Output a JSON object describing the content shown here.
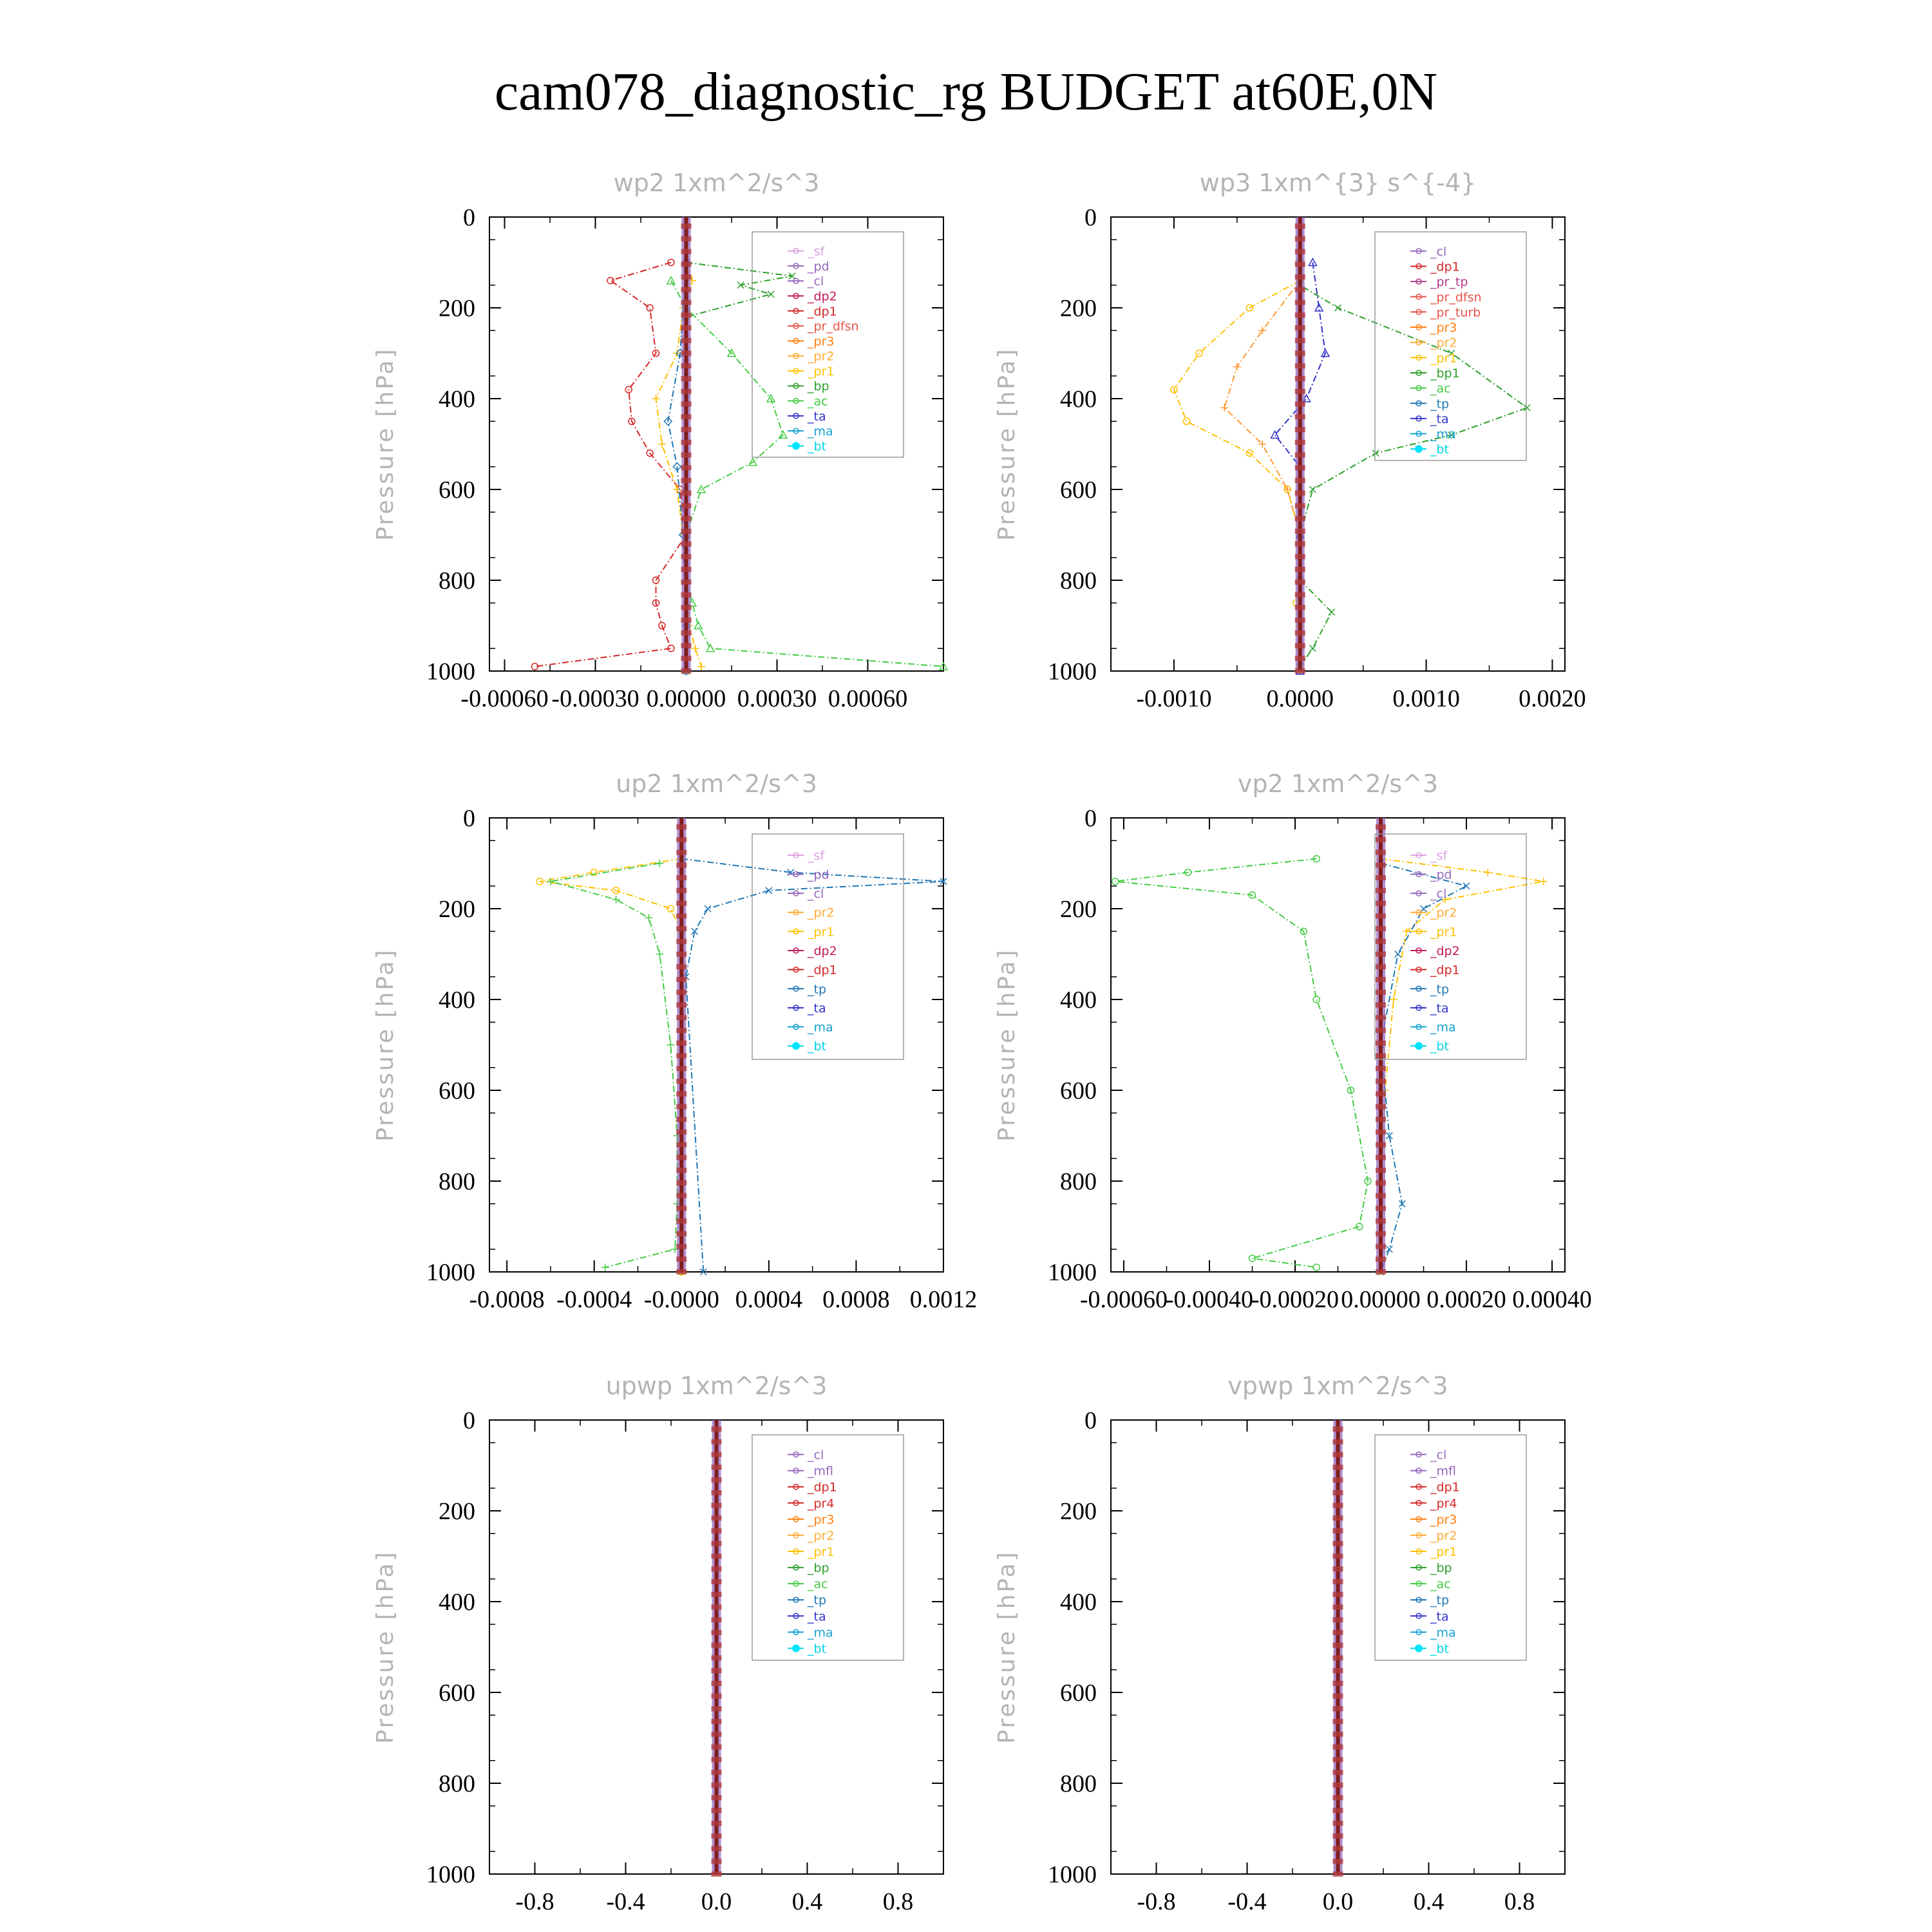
{
  "title": "cam078_diagnostic_rg  BUDGET at60E,0N",
  "chart_data": [
    {
      "type": "line",
      "title": "wp2   1xm^2/s^3",
      "ylabel": "Pressure  [hPa]",
      "ylim": [
        1000,
        0
      ],
      "xlim": [
        -0.00065,
        0.00085
      ],
      "xticks": [
        -0.0006,
        -0.0003,
        0.0,
        0.0003,
        0.0006
      ],
      "xtick_labels": [
        "-0.00060",
        "-0.00030",
        "0.00000",
        "0.00030",
        "0.00060"
      ],
      "yticks": [
        0,
        200,
        400,
        600,
        800,
        1000
      ],
      "ytick_labels": [
        "0",
        "200",
        "400",
        "600",
        "800",
        "1000"
      ],
      "legend": [
        "_sf",
        "_pd",
        "_cl",
        "_dp2",
        "_dp1",
        "_pr_dfsn",
        "_pr3",
        "_pr2",
        "_pr1",
        "_bp",
        "_ac",
        "_ta",
        "_ma",
        "_bt"
      ],
      "series": [
        {
          "name": "_dp1",
          "color": "#d62728",
          "y": [
            100,
            140,
            200,
            300,
            380,
            450,
            520,
            600,
            700,
            800,
            850,
            900,
            950,
            990
          ],
          "x": [
            -5e-05,
            -0.00025,
            -0.00012,
            -0.0001,
            -0.00019,
            -0.00018,
            -0.00012,
            -2e-05,
            0.0,
            -0.0001,
            -0.0001,
            -8e-05,
            -5e-05,
            -0.0005
          ]
        },
        {
          "name": "_pr1",
          "color": "#ffc000",
          "y": [
            100,
            140,
            200,
            300,
            400,
            500,
            600,
            700,
            800,
            900,
            950,
            990
          ],
          "x": [
            0.0,
            2e-05,
            -1e-05,
            -3e-05,
            -0.0001,
            -8e-05,
            -3e-05,
            -1e-05,
            0.0,
            1e-05,
            3e-05,
            5e-05
          ]
        },
        {
          "name": "_bp",
          "color": "#2ca02c",
          "y": [
            100,
            130,
            150,
            170,
            220,
            400,
            1000
          ],
          "x": [
            0.0,
            0.00035,
            0.00018,
            0.00028,
            0.0,
            0.0,
            0.0
          ]
        },
        {
          "name": "_ac",
          "color": "#44cc44",
          "y": [
            140,
            200,
            300,
            400,
            480,
            540,
            600,
            700,
            800,
            850,
            900,
            950,
            990
          ],
          "x": [
            -5e-05,
            0.0,
            0.00015,
            0.00028,
            0.00032,
            0.00022,
            5e-05,
            0.0,
            0.0,
            2e-05,
            4e-05,
            8e-05,
            0.00085
          ]
        },
        {
          "name": "_ma",
          "color": "#1f77b4",
          "y": [
            100,
            300,
            450,
            550,
            700,
            900,
            1000
          ],
          "x": [
            0.0,
            -2e-05,
            -6e-05,
            -3e-05,
            -1e-05,
            0.0,
            0.0
          ]
        },
        {
          "name": "_bt",
          "color": "#7f1d1d",
          "y": [
            0,
            1000
          ],
          "x": [
            0.0,
            0.0
          ]
        }
      ]
    },
    {
      "type": "line",
      "title": "wp3   1xm^{3} s^{-4}",
      "ylabel": "Pressure  [hPa]",
      "ylim": [
        1000,
        0
      ],
      "xlim": [
        -0.0015,
        0.0021
      ],
      "xticks": [
        -0.001,
        0.0,
        0.001,
        0.002
      ],
      "xtick_labels": [
        "-0.0010",
        "0.0000",
        "0.0010",
        "0.0020"
      ],
      "yticks": [
        0,
        200,
        400,
        600,
        800,
        1000
      ],
      "ytick_labels": [
        "0",
        "200",
        "400",
        "600",
        "800",
        "1000"
      ],
      "legend": [
        "_cl",
        "_dp1",
        "_pr_tp",
        "_pr_dfsn",
        "_pr_turb",
        "_pr3",
        "_pr2",
        "_pr1",
        "_bp1",
        "_ac",
        "_tp",
        "_ta",
        "_ma",
        "_bt"
      ],
      "series": [
        {
          "name": "_pr1",
          "color": "#ffc000",
          "y": [
            140,
            200,
            300,
            380,
            450,
            520,
            600,
            700,
            800,
            850,
            900,
            950,
            990
          ],
          "x": [
            0.0,
            -0.0004,
            -0.0008,
            -0.001,
            -0.0009,
            -0.0004,
            -0.0001,
            0.0,
            0.0,
            -3e-05,
            0.0,
            0.0,
            0.0
          ]
        },
        {
          "name": "_pr2",
          "color": "#ff9933",
          "y": [
            140,
            250,
            330,
            420,
            500,
            600,
            700,
            1000
          ],
          "x": [
            0.0,
            -0.0003,
            -0.0005,
            -0.0006,
            -0.0003,
            -0.0001,
            0.0,
            0.0
          ]
        },
        {
          "name": "_bp1",
          "color": "#2ca02c",
          "y": [
            100,
            150,
            200,
            300,
            420,
            480,
            520,
            600,
            700,
            800,
            870,
            950,
            990
          ],
          "x": [
            0.0,
            0.0,
            0.0003,
            0.0012,
            0.0018,
            0.0012,
            0.0006,
            0.0001,
            0.0,
            0.0,
            0.00025,
            0.0001,
            0.0
          ]
        },
        {
          "name": "_ta",
          "color": "#3333cc",
          "y": [
            100,
            200,
            300,
            400,
            480,
            550,
            700,
            1000
          ],
          "x": [
            0.0001,
            0.00015,
            0.0002,
            5e-05,
            -0.0002,
            0.0,
            0.0,
            0.0
          ]
        },
        {
          "name": "_bt",
          "color": "#7f1d1d",
          "y": [
            0,
            1000
          ],
          "x": [
            0.0,
            0.0
          ]
        }
      ]
    },
    {
      "type": "line",
      "title": "up2   1xm^2/s^3",
      "ylabel": "Pressure  [hPa]",
      "ylim": [
        1000,
        0
      ],
      "xlim": [
        -0.00088,
        0.0012
      ],
      "xticks": [
        -0.0008,
        -0.0004,
        0.0,
        0.0004,
        0.0008,
        0.0012
      ],
      "xtick_labels": [
        "-0.0008",
        "-0.0004",
        "-0.0000",
        "0.0004",
        "0.0008",
        "0.0012"
      ],
      "yticks": [
        0,
        200,
        400,
        600,
        800,
        1000
      ],
      "ytick_labels": [
        "0",
        "200",
        "400",
        "600",
        "800",
        "1000"
      ],
      "legend": [
        "_sf",
        "_pd",
        "_cl",
        "_pr2",
        "_pr1",
        "_dp2",
        "_dp1",
        "_tp",
        "_ta",
        "_ma",
        "_bt"
      ],
      "series": [
        {
          "name": "_pr1",
          "color": "#ffc000",
          "y": [
            90,
            120,
            140,
            160,
            200,
            250,
            1000
          ],
          "x": [
            0.0,
            -0.0004,
            -0.00065,
            -0.0003,
            -5e-05,
            0.0,
            0.0
          ]
        },
        {
          "name": "_dp1",
          "color": "#44cc44",
          "y": [
            100,
            140,
            180,
            220,
            300,
            500,
            700,
            850,
            950,
            990
          ],
          "x": [
            -0.0001,
            -0.0006,
            -0.0003,
            -0.00015,
            -0.0001,
            -5e-05,
            -2e-05,
            -2e-05,
            -3e-05,
            -0.00035
          ]
        },
        {
          "name": "_tp",
          "color": "#1f77b4",
          "y": [
            90,
            120,
            140,
            160,
            200,
            250,
            350,
            1000
          ],
          "x": [
            0.0,
            0.0005,
            0.0012,
            0.0004,
            0.00012,
            6e-05,
            2e-05,
            0.0001
          ]
        },
        {
          "name": "_bt",
          "color": "#7f1d1d",
          "y": [
            0,
            1000
          ],
          "x": [
            0.0,
            0.0
          ]
        }
      ]
    },
    {
      "type": "line",
      "title": "vp2   1xm^2/s^3",
      "ylabel": "Pressure  [hPa]",
      "ylim": [
        1000,
        0
      ],
      "xlim": [
        -0.00063,
        0.00043
      ],
      "xticks": [
        -0.0006,
        -0.0004,
        -0.0002,
        0.0,
        0.0002,
        0.0004
      ],
      "xtick_labels": [
        "-0.00060",
        "-0.00040",
        "-0.00020",
        "0.00000",
        "0.00020",
        "0.00040"
      ],
      "yticks": [
        0,
        200,
        400,
        600,
        800,
        1000
      ],
      "ytick_labels": [
        "0",
        "200",
        "400",
        "600",
        "800",
        "1000"
      ],
      "legend": [
        "_sf",
        "_pd",
        "_cl",
        "_pr2",
        "_pr1",
        "_dp2",
        "_dp1",
        "_tp",
        "_ta",
        "_ma",
        "_bt"
      ],
      "series": [
        {
          "name": "_dp1",
          "color": "#44cc44",
          "y": [
            90,
            120,
            140,
            170,
            250,
            400,
            600,
            800,
            900,
            970,
            990
          ],
          "x": [
            -0.00015,
            -0.00045,
            -0.00062,
            -0.0003,
            -0.00018,
            -0.00015,
            -7e-05,
            -3e-05,
            -5e-05,
            -0.0003,
            -0.00015
          ]
        },
        {
          "name": "_pr1",
          "color": "#ffc000",
          "y": [
            90,
            120,
            140,
            180,
            250,
            400,
            600,
            800,
            1000
          ],
          "x": [
            0.0,
            0.00025,
            0.00038,
            0.00015,
            6e-05,
            3e-05,
            1e-05,
            0.0,
            0.0
          ]
        },
        {
          "name": "_tp",
          "color": "#1f77b4",
          "y": [
            100,
            150,
            200,
            300,
            500,
            700,
            850,
            950,
            1000
          ],
          "x": [
            0.0,
            0.0002,
            0.0001,
            4e-05,
            0.0,
            2e-05,
            5e-05,
            2e-05,
            0.0
          ]
        },
        {
          "name": "_bt",
          "color": "#7f1d1d",
          "y": [
            0,
            1000
          ],
          "x": [
            0.0,
            0.0
          ]
        }
      ]
    },
    {
      "type": "line",
      "title": "upwp   1xm^2/s^3",
      "ylabel": "Pressure  [hPa]",
      "ylim": [
        1000,
        0
      ],
      "xlim": [
        -1.0,
        1.0
      ],
      "xticks": [
        -0.8,
        -0.4,
        0.0,
        0.4,
        0.8
      ],
      "xtick_labels": [
        "-0.8",
        "-0.4",
        "0.0",
        "0.4",
        "0.8"
      ],
      "yticks": [
        0,
        200,
        400,
        600,
        800,
        1000
      ],
      "ytick_labels": [
        "0",
        "200",
        "400",
        "600",
        "800",
        "1000"
      ],
      "legend": [
        "_cl",
        "_mfl",
        "_dp1",
        "_pr4",
        "_pr3",
        "_pr2",
        "_pr1",
        "_bp",
        "_ac",
        "_tp",
        "_ta",
        "_ma",
        "_bt"
      ],
      "series": [
        {
          "name": "_bt",
          "color": "#7f1d1d",
          "y": [
            0,
            1000
          ],
          "x": [
            0.0,
            0.0
          ]
        }
      ]
    },
    {
      "type": "line",
      "title": "vpwp   1xm^2/s^3",
      "ylabel": "Pressure  [hPa]",
      "ylim": [
        1000,
        0
      ],
      "xlim": [
        -1.0,
        1.0
      ],
      "xticks": [
        -0.8,
        -0.4,
        0.0,
        0.4,
        0.8
      ],
      "xtick_labels": [
        "-0.8",
        "-0.4",
        "0.0",
        "0.4",
        "0.8"
      ],
      "yticks": [
        0,
        200,
        400,
        600,
        800,
        1000
      ],
      "ytick_labels": [
        "0",
        "200",
        "400",
        "600",
        "800",
        "1000"
      ],
      "legend": [
        "_cl",
        "_mfl",
        "_dp1",
        "_pr4",
        "_pr3",
        "_pr2",
        "_pr1",
        "_bp",
        "_ac",
        "_tp",
        "_ta",
        "_ma",
        "_bt"
      ],
      "series": [
        {
          "name": "_bt",
          "color": "#7f1d1d",
          "y": [
            0,
            1000
          ],
          "x": [
            0.0,
            0.0
          ]
        }
      ]
    }
  ]
}
